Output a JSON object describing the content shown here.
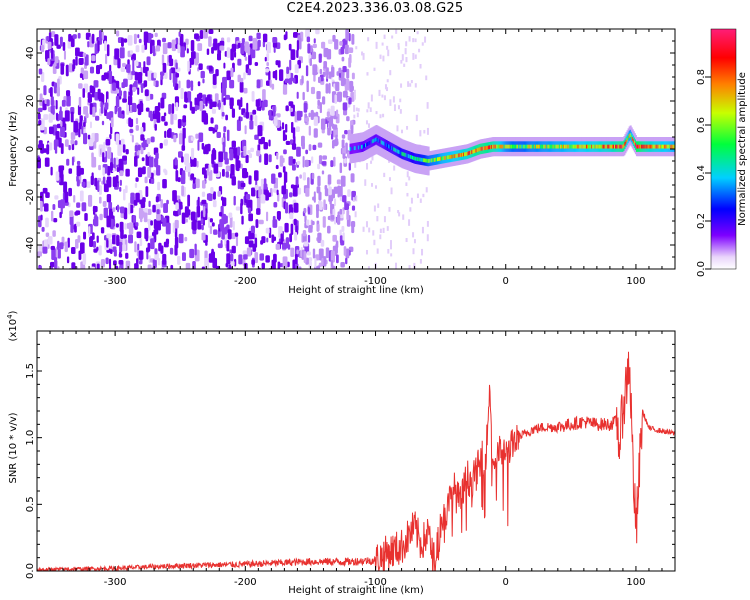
{
  "title": "C2E4.2023.336.03.08.G25",
  "colors": {
    "axis": "#000000",
    "snr_line": "#e8312f",
    "speckle_dark": "#6a00e8",
    "speckle_light": "#d8b8f6",
    "background": "#ffffff"
  },
  "chart_data": [
    {
      "type": "heatmap",
      "title": "",
      "xlabel": "Height of straight line (km)",
      "ylabel": "Frequency (Hz)",
      "xlim": [
        -360,
        130
      ],
      "ylim": [
        -50,
        50
      ],
      "xticks": [
        -300,
        -200,
        -100,
        0,
        100
      ],
      "yticks": [
        -40,
        -20,
        0,
        20,
        40
      ],
      "colorbar": {
        "label": "Normalized spectral amplitude",
        "range": [
          0,
          1
        ],
        "ticks": [
          "0.0",
          "0.2",
          "0.4",
          "0.6",
          "0.8"
        ],
        "stops": [
          "#ffffff",
          "#e9d5fb",
          "#7d00ff",
          "#0000ff",
          "#00d0ff",
          "#00ff3c",
          "#c8ff00",
          "#ff8000",
          "#ff0000",
          "#ff1e78"
        ]
      },
      "noise_region": {
        "x": [
          -360,
          -118
        ],
        "y": [
          -50,
          50
        ],
        "amplitude": 0.12
      },
      "sparse_region": {
        "x": [
          -118,
          -60
        ],
        "y": [
          -50,
          50
        ],
        "amplitude": 0.04
      },
      "signal_trace": {
        "x": [
          -120,
          -110,
          -100,
          -90,
          -80,
          -70,
          -60,
          -50,
          -40,
          -30,
          -20,
          -10,
          0,
          10,
          20,
          40,
          60,
          80,
          90,
          95,
          100,
          110,
          120,
          130
        ],
        "y": [
          0,
          1,
          4,
          1,
          -2,
          -4,
          -5,
          -4,
          -3,
          -2,
          0,
          1,
          1,
          1,
          1,
          1,
          1,
          1,
          1,
          6,
          1,
          1,
          1,
          1
        ],
        "amplitude": [
          0.25,
          0.3,
          0.3,
          0.35,
          0.4,
          0.4,
          0.55,
          0.65,
          0.7,
          0.75,
          0.85,
          0.8,
          0.6,
          0.55,
          0.6,
          0.65,
          0.7,
          0.75,
          0.85,
          0.6,
          0.9,
          0.75,
          0.7,
          0.65
        ]
      }
    },
    {
      "type": "line",
      "title": "",
      "xlabel": "Height of straight line (km)",
      "ylabel": "SNR (10 * v/v)",
      "multiplier": "(x10",
      "multiplier_exp": "4",
      "multiplier_close": ")",
      "xlim": [
        -360,
        130
      ],
      "ylim": [
        0,
        1.8
      ],
      "xticks": [
        -300,
        -200,
        -100,
        0,
        100
      ],
      "yticks": [
        "0.0",
        "0.5",
        "1.0",
        "1.5"
      ],
      "ytick_values": [
        0,
        0.5,
        1.0,
        1.5
      ],
      "series": [
        {
          "x": [
            -360,
            -300,
            -250,
            -200,
            -150,
            -120,
            -100,
            -90,
            -80,
            -70,
            -65,
            -60,
            -55,
            -50,
            -45,
            -40,
            -35,
            -30,
            -25,
            -20,
            -15,
            -12,
            -10,
            -5,
            0,
            5,
            10,
            20,
            30,
            40,
            50,
            60,
            70,
            80,
            85,
            88,
            90,
            92,
            95,
            97,
            100,
            105,
            110,
            120,
            130
          ],
          "y": [
            0.01,
            0.02,
            0.04,
            0.05,
            0.07,
            0.07,
            0.08,
            0.14,
            0.18,
            0.33,
            0.2,
            0.28,
            0.08,
            0.35,
            0.45,
            0.62,
            0.5,
            0.7,
            0.68,
            0.8,
            0.9,
            1.4,
            0.8,
            0.9,
            0.88,
            0.95,
            1.0,
            1.06,
            1.08,
            1.08,
            1.1,
            1.12,
            1.1,
            1.1,
            1.12,
            0.95,
            1.25,
            1.35,
            1.6,
            1.0,
            0.25,
            1.2,
            1.07,
            1.05,
            1.03
          ]
        }
      ]
    }
  ]
}
